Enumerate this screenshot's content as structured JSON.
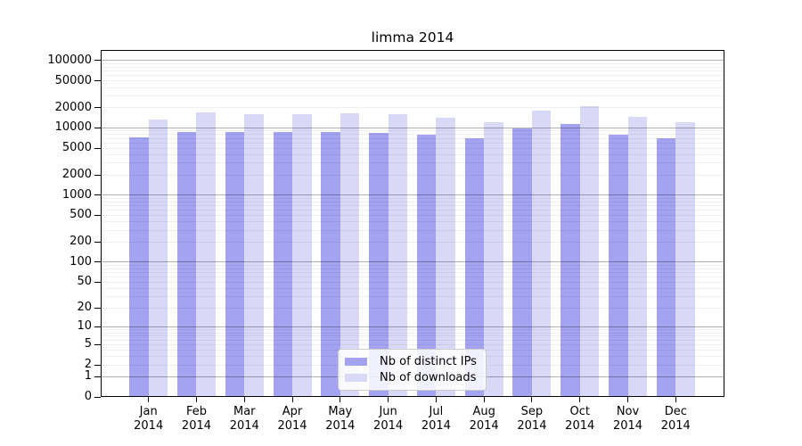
{
  "chart_data": {
    "type": "bar",
    "title": "limma 2014",
    "x_year": "2014",
    "categories": [
      "Jan",
      "Feb",
      "Mar",
      "Apr",
      "May",
      "Jun",
      "Jul",
      "Aug",
      "Sep",
      "Oct",
      "Nov",
      "Dec"
    ],
    "series": [
      {
        "key": "distinct-ips",
        "name": "Nb of distinct IPs",
        "color": "#a3a3f2",
        "values": [
          7200,
          8700,
          8700,
          8700,
          8700,
          8400,
          7900,
          7000,
          9700,
          11300,
          8000,
          7000
        ]
      },
      {
        "key": "downloads",
        "name": "Nb of downloads",
        "color": "#d9d9f7",
        "values": [
          13500,
          17000,
          15800,
          16000,
          16400,
          16000,
          14000,
          12000,
          18300,
          21000,
          14600,
          12000
        ]
      }
    ],
    "y_axis": {
      "scale": "log10(value+1)",
      "tick_labels": [
        100000,
        50000,
        20000,
        10000,
        5000,
        2000,
        1000,
        500,
        200,
        100,
        50,
        20,
        10,
        5,
        2,
        1,
        0
      ]
    },
    "grid": {
      "minor_multiples": [
        2,
        3,
        4,
        5,
        6,
        7,
        8,
        9
      ],
      "minor_decades": [
        0,
        1,
        2,
        3,
        4
      ],
      "major_powers": [
        0,
        1,
        2,
        3,
        4,
        5
      ]
    },
    "legend_position": "bottom-center"
  },
  "colors": {
    "minor_grid": "rgba(0,0,0,0.06)",
    "major_grid": "rgba(0,0,0,0.30)",
    "frame": "#000000"
  }
}
